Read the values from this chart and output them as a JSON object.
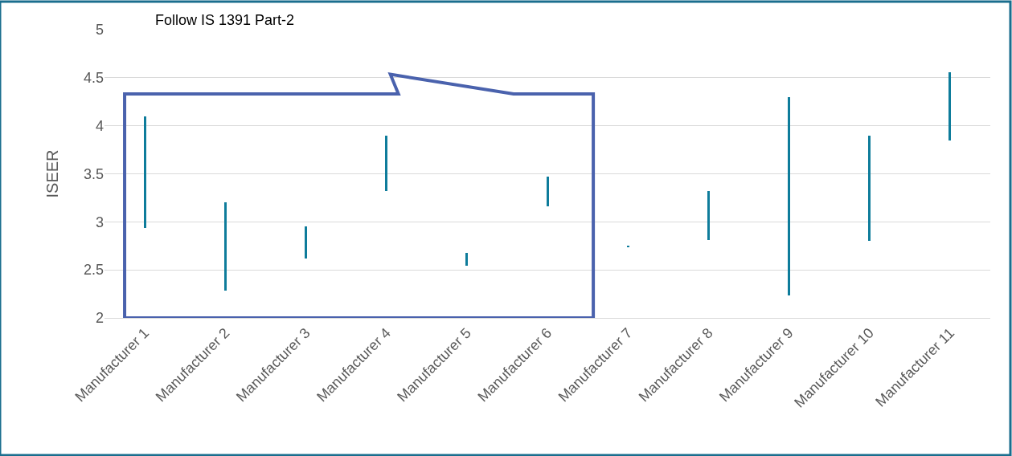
{
  "chart_data": {
    "type": "bar",
    "ylabel": "ISEER",
    "categories": [
      "Manufacturer 1",
      "Manufacturer 2",
      "Manufacturer 3",
      "Manufacturer 4",
      "Manufacturer 5",
      "Manufacturer 6",
      "Manufacturer 7",
      "Manufacturer 8",
      "Manufacturer 9",
      "Manufacturer 10",
      "Manufacturer 11"
    ],
    "base": [
      2.94,
      2.28,
      2.62,
      3.32,
      2.54,
      3.16,
      2.74,
      2.81,
      2.23,
      2.8,
      3.85
    ],
    "values": [
      1.16,
      0.92,
      0.33,
      0.58,
      0.14,
      0.31,
      0.01,
      0.51,
      2.07,
      1.1,
      0.71
    ],
    "color": "#0e7c9b",
    "ylim": [
      2,
      5
    ],
    "yticks": [
      2,
      2.5,
      3,
      3.5,
      4,
      4.5,
      5
    ],
    "grid": "y",
    "annotations": [
      "Follow IS 1391 Part-2"
    ]
  }
}
